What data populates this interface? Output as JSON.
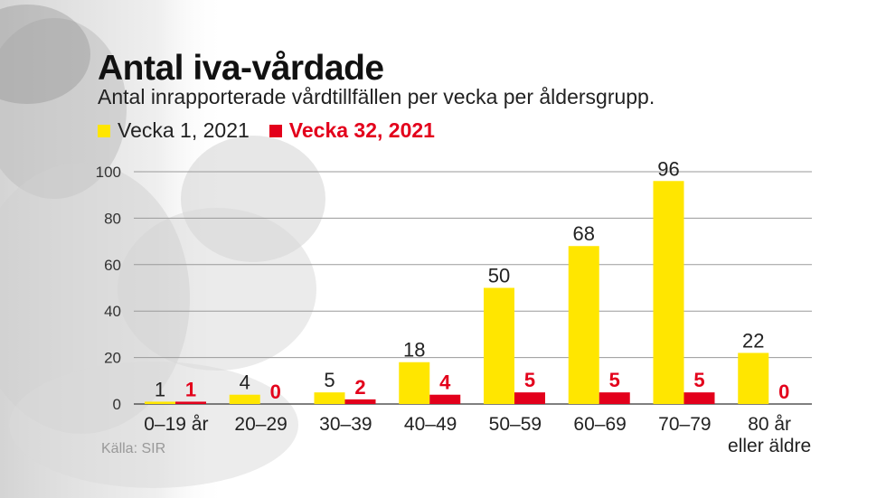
{
  "title": "Antal iva-vårdade",
  "subtitle": "Antal inrapporterade vårdtillfällen per vecka per åldersgrupp.",
  "source": "Källa: SIR",
  "colors": {
    "series1": "#ffe600",
    "series2": "#e3001b",
    "grid": "#9a9a9a",
    "text": "#222222"
  },
  "chart_data": {
    "type": "bar",
    "categories": [
      "0–19 år",
      "20–29",
      "30–39",
      "40–49",
      "50–59",
      "60–69",
      "70–79",
      "80 år\neller äldre"
    ],
    "series": [
      {
        "name": "Vecka 1, 2021",
        "values": [
          1,
          4,
          5,
          18,
          50,
          68,
          96,
          22
        ]
      },
      {
        "name": "Vecka 32, 2021",
        "values": [
          1,
          0,
          2,
          4,
          5,
          5,
          5,
          0
        ]
      }
    ],
    "yticks": [
      0,
      20,
      40,
      60,
      80,
      100
    ],
    "ylim": [
      0,
      100
    ],
    "grid": true,
    "legend": "top-left"
  }
}
